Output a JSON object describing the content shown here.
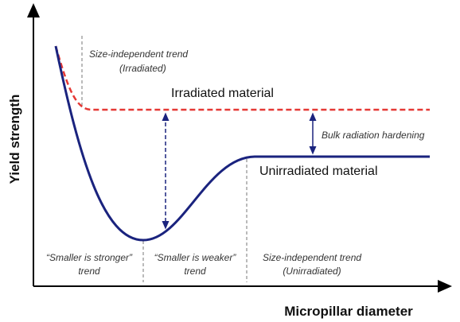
{
  "title_y": "Yield strength",
  "title_x": "Micropillar diameter",
  "labels": {
    "size_independent_irr": [
      "Size-independent trend",
      "(Irradiated)"
    ],
    "irradiated": "Irradiated material",
    "hardening": "Bulk radiation hardening",
    "unirradiated": "Unirradiated material",
    "stronger": [
      "“Smaller is stronger”",
      "trend"
    ],
    "weaker": [
      "“Smaller is weaker”",
      "trend"
    ],
    "size_independent_unirr": [
      "Size-independent trend",
      "(Unirradiated)"
    ]
  }
}
